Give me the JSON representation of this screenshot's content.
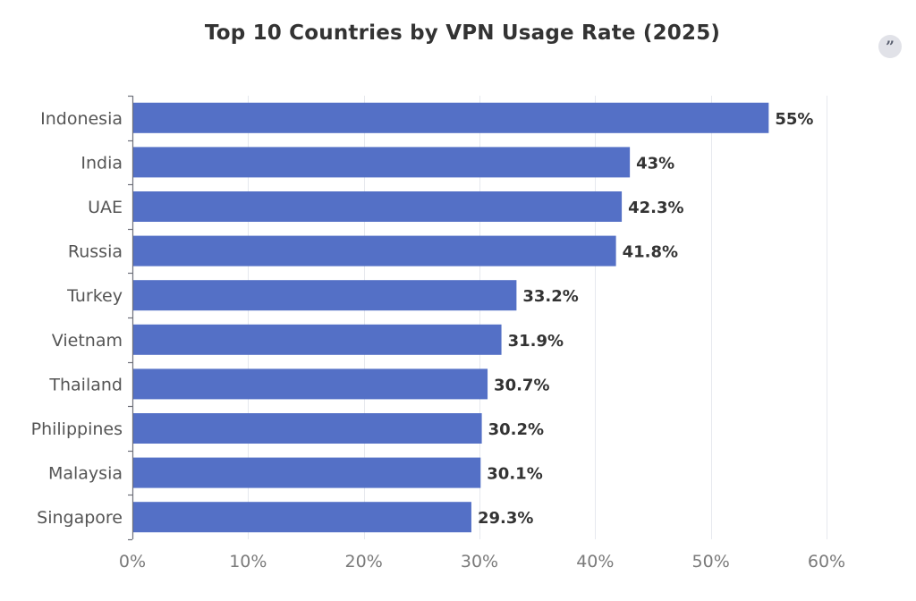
{
  "chart_data": {
    "type": "bar",
    "orientation": "horizontal",
    "title": "Top 10 Countries by VPN Usage Rate (2025)",
    "categories": [
      "Indonesia",
      "India",
      "UAE",
      "Russia",
      "Turkey",
      "Vietnam",
      "Thailand",
      "Philippines",
      "Malaysia",
      "Singapore"
    ],
    "values": [
      55,
      43,
      42.3,
      41.8,
      33.2,
      31.9,
      30.7,
      30.2,
      30.1,
      29.3
    ],
    "data_labels": [
      "55%",
      "43%",
      "42.3%",
      "41.8%",
      "33.2%",
      "31.9%",
      "30.7%",
      "30.2%",
      "30.1%",
      "29.3%"
    ],
    "xlim": [
      0,
      60
    ],
    "xticks": [
      0,
      10,
      20,
      30,
      40,
      50,
      60
    ],
    "xtick_labels": [
      "0%",
      "10%",
      "20%",
      "30%",
      "40%",
      "50%",
      "60%"
    ],
    "xlabel": "",
    "ylabel": "",
    "grid": "vertical",
    "bar_color": "#5470c6",
    "gridline_color": "#e6e8ee",
    "axis_color": "#6e7079"
  },
  "toolbar": {
    "quote_icon": "quote-icon",
    "quote_glyph": "”"
  }
}
